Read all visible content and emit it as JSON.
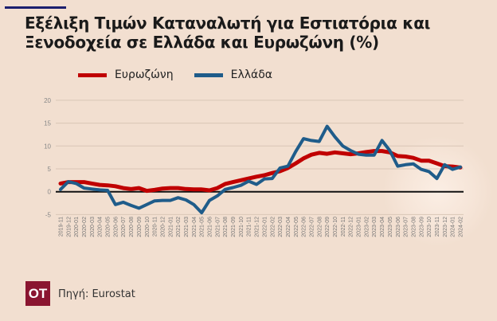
{
  "title": "Εξέλιξη Τιμών Καταναλωτή για Εστιατόρια και Ξενοδοχεία σε Ελλάδα και Ευρωζώνη (%)",
  "source": "Πηγή: Eurostat",
  "logo": "OT",
  "chart_data": {
    "type": "line",
    "title": "Εξέλιξη Τιμών Καταναλωτή για Εστιατόρια και Ξενοδοχεία σε Ελλάδα και Ευρωζώνη (%)",
    "xlabel": "",
    "ylabel": "",
    "ylim": [
      -5,
      20
    ],
    "yticks": [
      20,
      15,
      10,
      5,
      0,
      -5
    ],
    "grid": true,
    "legend_position": "top-left",
    "x": [
      "2019-11",
      "2019-12",
      "2020-01",
      "2020-02",
      "2020-03",
      "2020-04",
      "2020-05",
      "2020-06",
      "2020-07",
      "2020-08",
      "2020-09",
      "2020-10",
      "2020-11",
      "2020-12",
      "2021-01",
      "2021-02",
      "2021-03",
      "2021-04",
      "2021-05",
      "2021-06",
      "2021-07",
      "2021-08",
      "2021-09",
      "2021-10",
      "2021-11",
      "2021-12",
      "2022-01",
      "2022-02",
      "2022-03",
      "2022-04",
      "2022-05",
      "2022-06",
      "2022-07",
      "2022-08",
      "2022-09",
      "2022-10",
      "2022-11",
      "2022-12",
      "2023-01",
      "2023-02",
      "2023-03",
      "2023-04",
      "2023-05",
      "2023-06",
      "2023-07",
      "2023-08",
      "2023-09",
      "2023-10",
      "2023-11",
      "2023-12",
      "2024-01",
      "2024-02"
    ],
    "series": [
      {
        "name": "Ευρωζώνη",
        "color": "#c00000",
        "values": [
          1.8,
          2.1,
          2.1,
          2.1,
          1.8,
          1.5,
          1.4,
          1.2,
          0.8,
          0.6,
          0.8,
          0.2,
          0.4,
          0.7,
          0.8,
          0.8,
          0.6,
          0.5,
          0.5,
          0.3,
          0.8,
          1.7,
          2.1,
          2.5,
          2.9,
          3.3,
          3.6,
          4.1,
          4.5,
          5.2,
          6.2,
          7.3,
          8.1,
          8.5,
          8.3,
          8.6,
          8.4,
          8.2,
          8.4,
          8.7,
          8.9,
          8.9,
          8.6,
          7.8,
          7.7,
          7.4,
          6.8,
          6.8,
          6.2,
          5.6,
          5.5,
          5.3
        ]
      },
      {
        "name": "Ελλάδα",
        "color": "#1f5c8a",
        "values": [
          0.5,
          2.2,
          1.8,
          0.8,
          0.6,
          0.4,
          0.3,
          -2.8,
          -2.3,
          -3.0,
          -3.6,
          -2.8,
          -2.0,
          -1.9,
          -1.9,
          -1.3,
          -1.8,
          -2.8,
          -4.6,
          -1.9,
          -0.9,
          0.5,
          0.9,
          1.4,
          2.3,
          1.6,
          2.8,
          2.9,
          5.2,
          5.6,
          8.8,
          11.6,
          11.2,
          11.0,
          14.3,
          12.0,
          10.0,
          9.0,
          8.2,
          8.0,
          8.0,
          11.2,
          9.0,
          5.6,
          5.9,
          6.1,
          4.9,
          4.4,
          2.9,
          5.9,
          4.9,
          5.4
        ]
      }
    ]
  }
}
